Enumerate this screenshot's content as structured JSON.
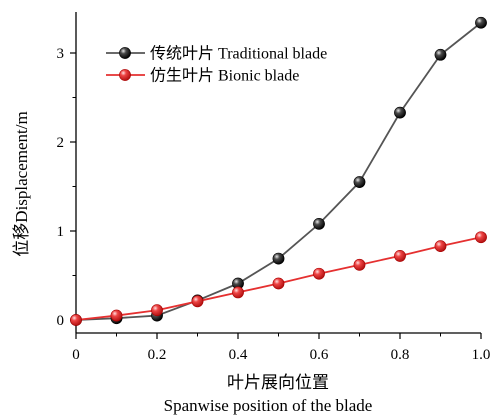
{
  "chart_data": {
    "type": "line",
    "xlabel": "叶片展向位置",
    "xlabel_en": "Spanwise position of the blade",
    "ylabel": "位移Displacement/m",
    "xlim": [
      0,
      1.0
    ],
    "ylim": [
      -0.05,
      3.45
    ],
    "xticks": [
      0,
      0.2,
      0.4,
      0.6,
      0.8,
      1.0
    ],
    "xtick_labels": [
      "0",
      "0.2",
      "0.4",
      "0.6",
      "0.8",
      "1.0"
    ],
    "yticks": [
      0,
      1,
      2,
      3
    ],
    "ytick_labels": [
      "0",
      "1",
      "2",
      "3"
    ],
    "legend_position": "top-left",
    "grid": false,
    "x": [
      0,
      0.1,
      0.2,
      0.3,
      0.4,
      0.5,
      0.6,
      0.7,
      0.8,
      0.9,
      1.0
    ],
    "series": [
      {
        "name": "传统叶片 Traditional blade",
        "color": "#555555",
        "marker": "black-sphere",
        "values": [
          0.0,
          0.02,
          0.05,
          0.22,
          0.41,
          0.69,
          1.08,
          1.55,
          2.33,
          2.98,
          3.34
        ]
      },
      {
        "name": "仿生叶片 Bionic blade",
        "color": "#e53030",
        "marker": "red-sphere",
        "values": [
          0.0,
          0.05,
          0.11,
          0.21,
          0.31,
          0.41,
          0.52,
          0.62,
          0.72,
          0.83,
          0.93
        ]
      }
    ]
  }
}
